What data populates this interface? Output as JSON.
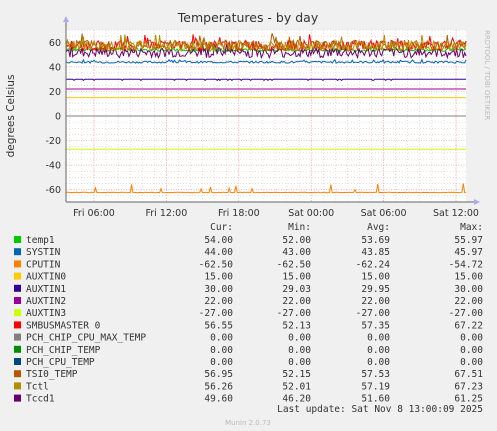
{
  "chart_data": {
    "type": "line",
    "title": "Temperatures - by day",
    "ylabel": "degrees Celsius",
    "xlabel": "",
    "side_label": "RRDTOOL / TOBI OETIKER",
    "ylim": [
      -70,
      70
    ],
    "yticks": [
      60,
      40,
      20,
      0,
      -20,
      -40,
      -60
    ],
    "ytick_labels": [
      "60",
      "40",
      "20",
      "0",
      "-20",
      "-40",
      "-60"
    ],
    "xticks": [
      "Fri 06:00",
      "Fri 12:00",
      "Fri 18:00",
      "Sat 00:00",
      "Sat 06:00",
      "Sat 12:00"
    ],
    "grid": true,
    "legend_header": {
      "cur": "Cur:",
      "min": "Min:",
      "avg": "Avg:",
      "max": "Max:"
    },
    "series": [
      {
        "name": "temp1",
        "color": "#00cc00",
        "cur": "54.00",
        "min": "52.00",
        "avg": "53.69",
        "max": "55.97"
      },
      {
        "name": "SYSTIN",
        "color": "#0066b3",
        "cur": "44.00",
        "min": "43.00",
        "avg": "43.85",
        "max": "45.97"
      },
      {
        "name": "CPUTIN",
        "color": "#ff8000",
        "cur": "-62.50",
        "min": "-62.50",
        "avg": "-62.24",
        "max": "-54.72"
      },
      {
        "name": "AUXTIN0",
        "color": "#ffcc00",
        "cur": "15.00",
        "min": "15.00",
        "avg": "15.00",
        "max": "15.00"
      },
      {
        "name": "AUXTIN1",
        "color": "#330099",
        "cur": "30.00",
        "min": "29.03",
        "avg": "29.95",
        "max": "30.00"
      },
      {
        "name": "AUXTIN2",
        "color": "#990099",
        "cur": "22.00",
        "min": "22.00",
        "avg": "22.00",
        "max": "22.00"
      },
      {
        "name": "AUXTIN3",
        "color": "#ccff00",
        "cur": "-27.00",
        "min": "-27.00",
        "avg": "-27.00",
        "max": "-27.00"
      },
      {
        "name": "SMBUSMASTER 0",
        "color": "#ff0000",
        "cur": "56.55",
        "min": "52.13",
        "avg": "57.35",
        "max": "67.22"
      },
      {
        "name": "PCH_CHIP_CPU_MAX_TEMP",
        "color": "#808080",
        "cur": "0.00",
        "min": "0.00",
        "avg": "0.00",
        "max": "0.00"
      },
      {
        "name": "PCH_CHIP_TEMP",
        "color": "#008f00",
        "cur": "0.00",
        "min": "0.00",
        "avg": "0.00",
        "max": "0.00"
      },
      {
        "name": "PCH_CPU_TEMP",
        "color": "#00487d",
        "cur": "0.00",
        "min": "0.00",
        "avg": "0.00",
        "max": "0.00"
      },
      {
        "name": "TSI0_TEMP",
        "color": "#b35a00",
        "cur": "56.95",
        "min": "52.15",
        "avg": "57.53",
        "max": "67.51"
      },
      {
        "name": "Tctl",
        "color": "#b38f00",
        "cur": "56.26",
        "min": "52.01",
        "avg": "57.19",
        "max": "67.23"
      },
      {
        "name": "Tccd1",
        "color": "#6b006b",
        "cur": "49.60",
        "min": "46.20",
        "avg": "51.60",
        "max": "61.25"
      }
    ],
    "last_update": "Last update: Sat Nov  8 13:00:09 2025",
    "footer": "Munin 2.0.73"
  }
}
